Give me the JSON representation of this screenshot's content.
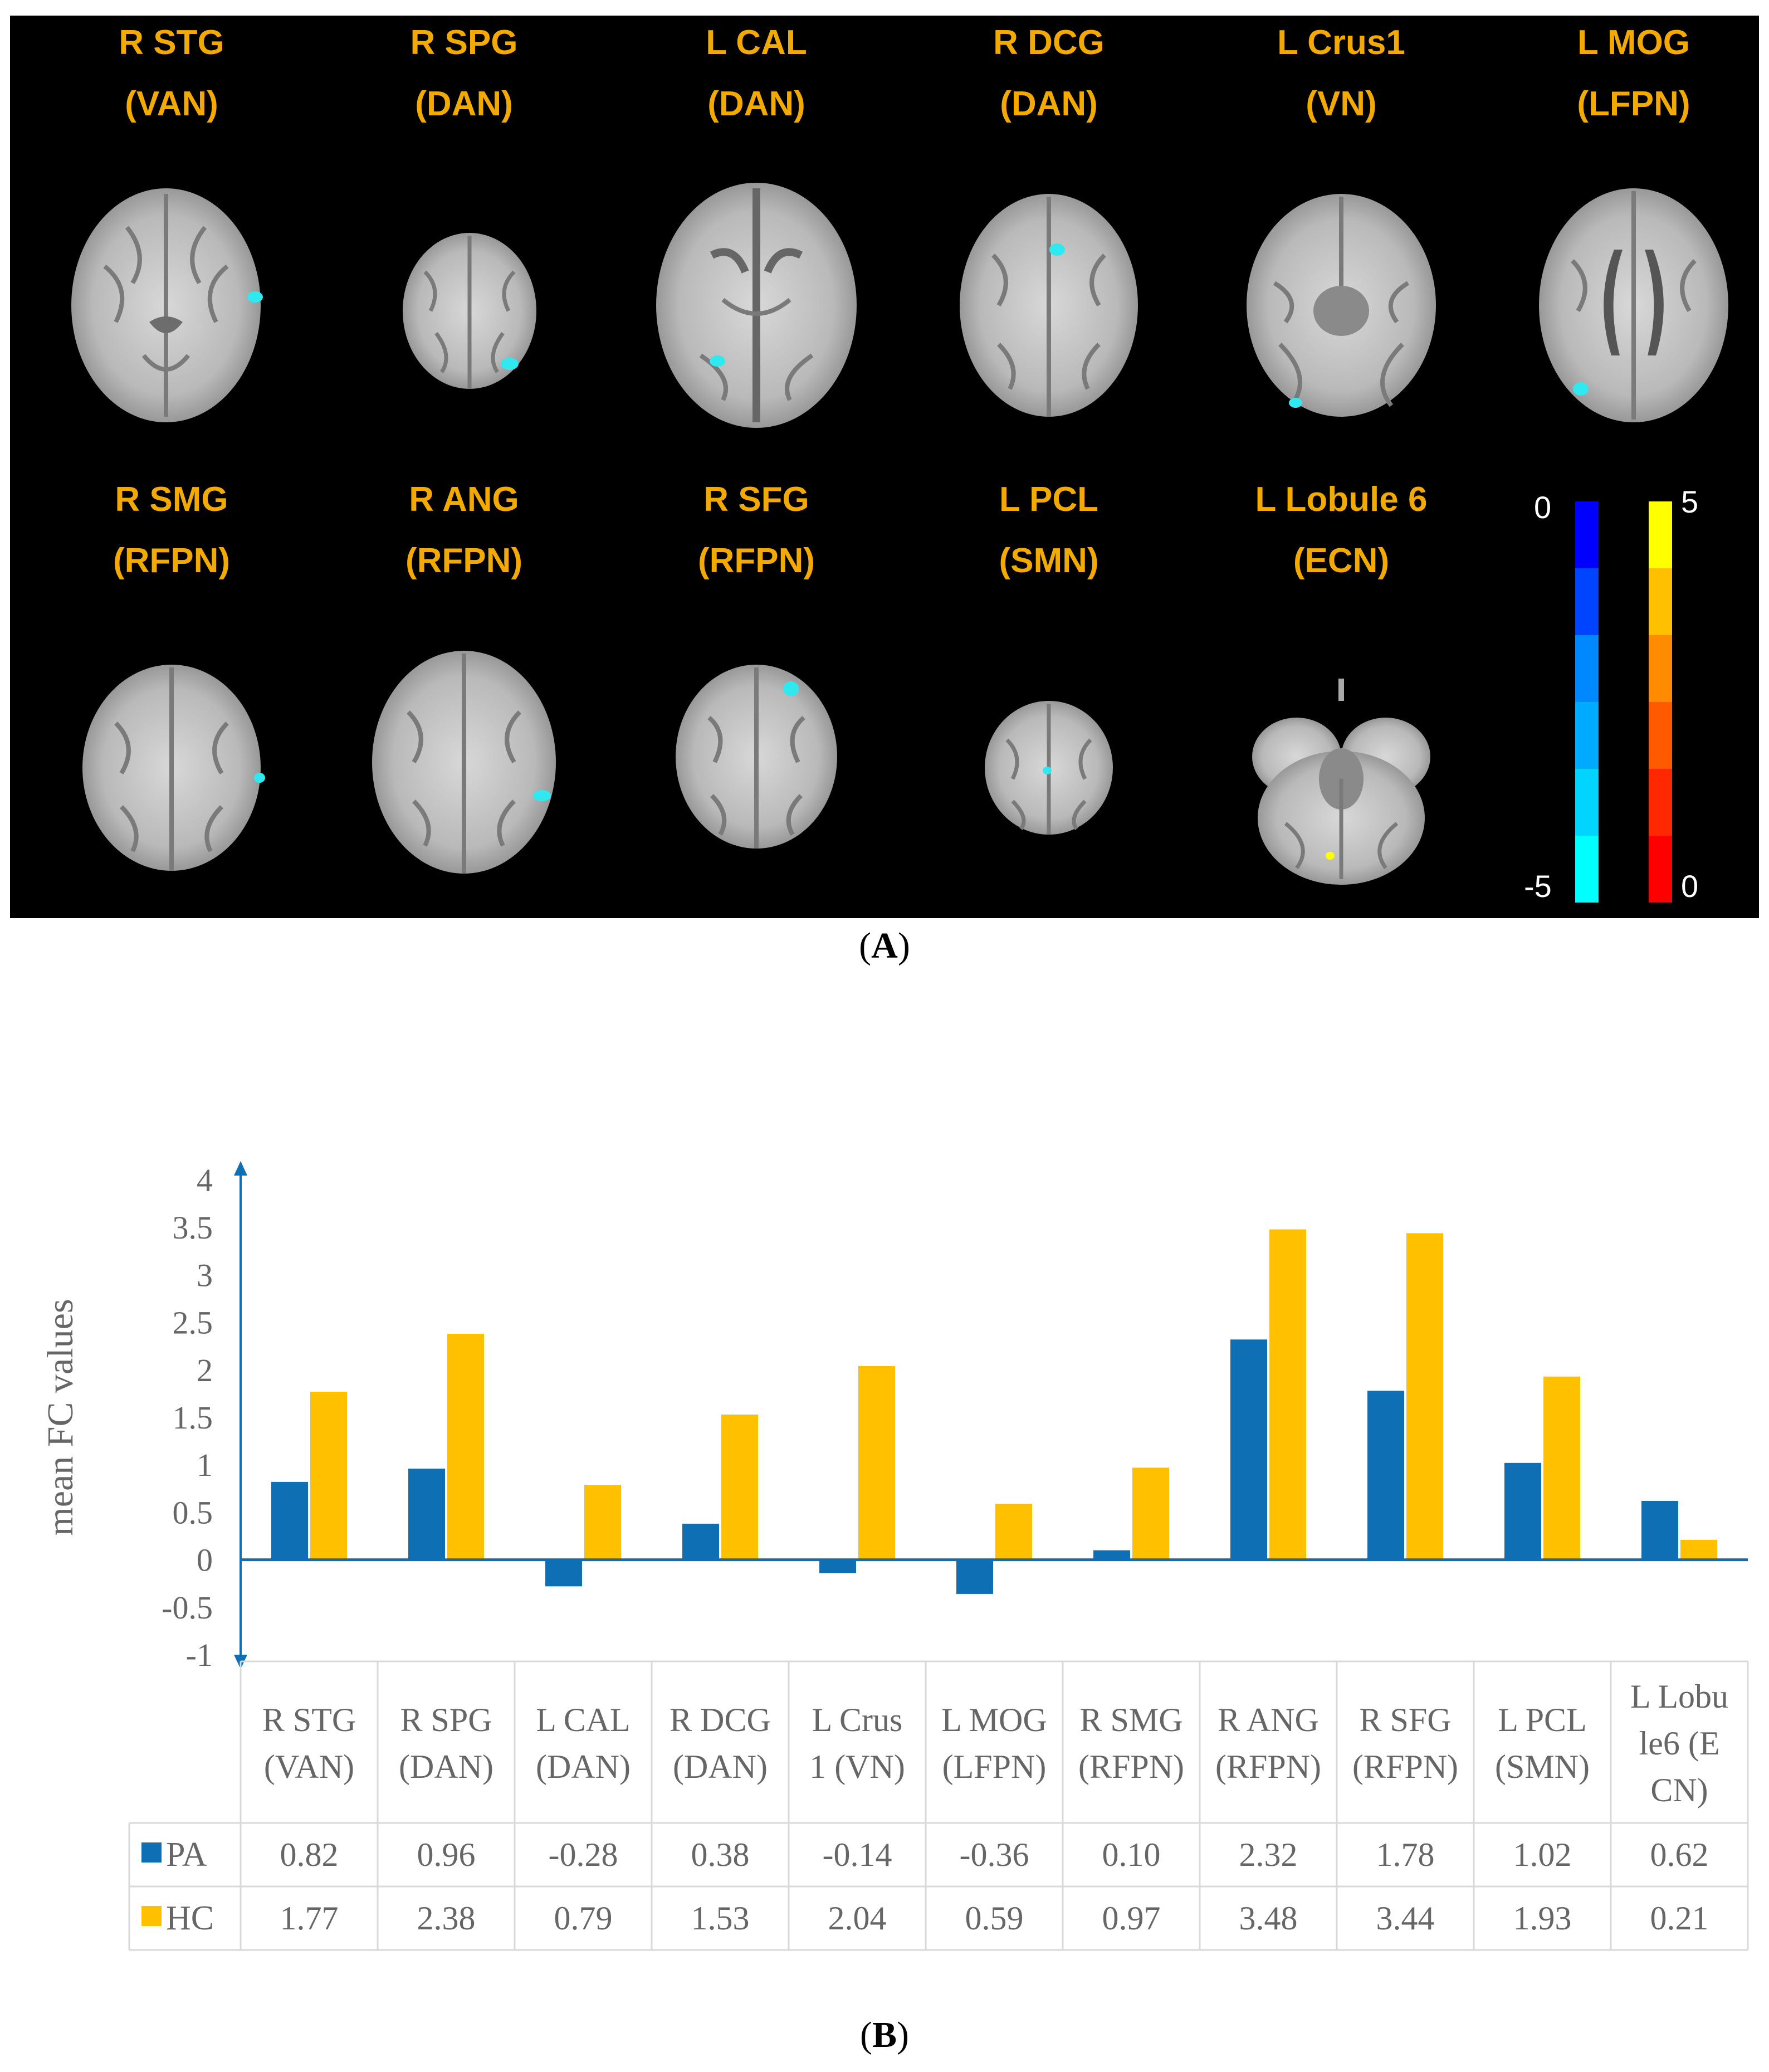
{
  "panel_a": {
    "caption_open": "(",
    "caption_letter": "A",
    "caption_close": ")",
    "regions": [
      {
        "name": "R STG",
        "network": "(VAN)"
      },
      {
        "name": "R SPG",
        "network": "(DAN)"
      },
      {
        "name": "L CAL",
        "network": "(DAN)"
      },
      {
        "name": "R DCG",
        "network": "(DAN)"
      },
      {
        "name": "L Crus1",
        "network": "(VN)"
      },
      {
        "name": "L MOG",
        "network": "(LFPN)"
      },
      {
        "name": "R SMG",
        "network": "(RFPN)"
      },
      {
        "name": "R ANG",
        "network": "(RFPN)"
      },
      {
        "name": "R SFG",
        "network": "(RFPN)"
      },
      {
        "name": "L PCL",
        "network": "(SMN)"
      },
      {
        "name": "L Lobule 6",
        "network": "(ECN)"
      }
    ],
    "colorbar": {
      "neg_top": "0",
      "neg_bottom": "-5",
      "pos_top": "5",
      "pos_bottom": "0",
      "neg_colors": [
        "#0000ff",
        "#0044ff",
        "#0088ff",
        "#00aaff",
        "#00d4ff",
        "#00ffff"
      ],
      "pos_colors": [
        "#ffff00",
        "#ffc000",
        "#ff8c00",
        "#ff5a00",
        "#ff2800",
        "#ff0000"
      ]
    }
  },
  "panel_b": {
    "caption_open": "(",
    "caption_letter": "B",
    "caption_close": ")"
  },
  "chart_data": {
    "type": "bar",
    "ylabel": "mean FC values",
    "ylim": [
      -1,
      4
    ],
    "yticks": [
      "-1",
      "-0.5",
      "0",
      "0.5",
      "1",
      "1.5",
      "2",
      "2.5",
      "3",
      "3.5",
      "4"
    ],
    "categories": [
      [
        "R STG",
        "(VAN)"
      ],
      [
        "R SPG",
        "(DAN)"
      ],
      [
        "L CAL",
        "(DAN)"
      ],
      [
        "R DCG",
        "(DAN)"
      ],
      [
        "L Crus",
        "1  (VN)"
      ],
      [
        "L MOG",
        "(LFPN)"
      ],
      [
        "R SMG",
        "(RFPN)"
      ],
      [
        "R ANG",
        "(RFPN)"
      ],
      [
        "R SFG",
        "(RFPN)"
      ],
      [
        "L PCL",
        "(SMN)"
      ],
      [
        "L Lobu",
        "le6  (E",
        "CN)"
      ]
    ],
    "series": [
      {
        "name": "PA",
        "color": "#0f6fb5",
        "values": [
          0.82,
          0.96,
          -0.28,
          0.38,
          -0.14,
          -0.36,
          0.1,
          2.32,
          1.78,
          1.02,
          0.62
        ],
        "labels": [
          "0.82",
          "0.96",
          "-0.28",
          "0.38",
          "-0.14",
          "-0.36",
          "0.10",
          "2.32",
          "1.78",
          "1.02",
          "0.62"
        ]
      },
      {
        "name": "HC",
        "color": "#ffc000",
        "values": [
          1.77,
          2.38,
          0.79,
          1.53,
          2.04,
          0.59,
          0.97,
          3.48,
          3.44,
          1.93,
          0.21
        ],
        "labels": [
          "1.77",
          "2.38",
          "0.79",
          "1.53",
          "2.04",
          "0.59",
          "0.97",
          "3.48",
          "3.44",
          "1.93",
          "0.21"
        ]
      }
    ],
    "axis_color": "#0f6fb5"
  }
}
